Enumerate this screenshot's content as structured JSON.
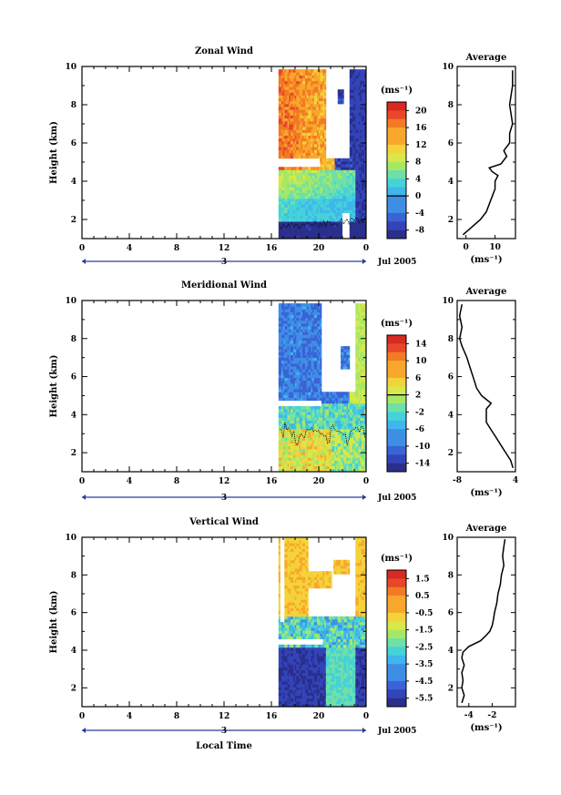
{
  "chart_data": [
    {
      "type": "heatmap",
      "title": "Zonal Wind",
      "ylabel": "Height (km)",
      "xlabel": "",
      "x_ticks": [
        "0",
        "4",
        "8",
        "12",
        "16",
        "20",
        "0"
      ],
      "y_ticks": [
        "2",
        "4",
        "6",
        "8",
        "10"
      ],
      "xlim": [
        0,
        24
      ],
      "ylim": [
        1,
        10
      ],
      "date_row": {
        "day_label": "3",
        "month_label": "Jul 2005"
      },
      "colorbar": {
        "unit": "(ms⁻¹)",
        "ticks": [
          "20",
          "16",
          "12",
          "8",
          "4",
          "0",
          "-4",
          "-8"
        ],
        "range": [
          -10,
          22
        ],
        "zero_line": 0
      },
      "profile": {
        "title": "Average",
        "x_ticks": [
          "0",
          "10"
        ],
        "xlim": [
          -3,
          17
        ],
        "unit": "(ms⁻¹)",
        "y_ticks": [
          "2",
          "4",
          "6",
          "8",
          "10"
        ],
        "heights": [
          1.2,
          1.6,
          2.0,
          2.4,
          2.8,
          3.2,
          3.6,
          4.0,
          4.3,
          4.5,
          4.7,
          4.9,
          5.1,
          5.3,
          5.6,
          6.0,
          6.5,
          7.0,
          8.0,
          9.0,
          9.8
        ],
        "values": [
          -1,
          2,
          5,
          7,
          8,
          9,
          10,
          10,
          11,
          9,
          8,
          12,
          13,
          14,
          13,
          15,
          15,
          16,
          15,
          16,
          16
        ]
      }
    },
    {
      "type": "heatmap",
      "title": "Meridional Wind",
      "ylabel": "Height (km)",
      "xlabel": "",
      "x_ticks": [
        "0",
        "4",
        "8",
        "12",
        "16",
        "20",
        "0"
      ],
      "y_ticks": [
        "2",
        "4",
        "6",
        "8",
        "10"
      ],
      "xlim": [
        0,
        24
      ],
      "ylim": [
        1,
        10
      ],
      "date_row": {
        "day_label": "3",
        "month_label": "Jul 2005"
      },
      "colorbar": {
        "unit": "(ms⁻¹)",
        "ticks": [
          "14",
          "10",
          "6",
          "2",
          "-2",
          "-6",
          "-10",
          "-14"
        ],
        "range": [
          -16,
          16
        ],
        "zero_line": 2
      },
      "profile": {
        "title": "Average",
        "x_ticks": [
          "-8",
          "4"
        ],
        "xlim": [
          -8,
          4
        ],
        "unit": "(ms⁻¹)",
        "y_ticks": [
          "2",
          "4",
          "6",
          "8",
          "10"
        ],
        "heights": [
          1.2,
          1.6,
          2.0,
          2.4,
          2.8,
          3.2,
          3.6,
          4.0,
          4.3,
          4.6,
          4.8,
          5.0,
          5.4,
          5.8,
          6.2,
          6.6,
          7.0,
          7.6,
          8.0,
          8.6,
          9.2,
          9.8
        ],
        "values": [
          3.5,
          3,
          2,
          1,
          0,
          -1,
          -2,
          -2,
          -2,
          -1,
          -2,
          -3,
          -4,
          -4.5,
          -5,
          -5.5,
          -6,
          -7,
          -7.5,
          -7,
          -7.5,
          -7
        ]
      }
    },
    {
      "type": "heatmap",
      "title": "Vertical Wind",
      "ylabel": "Height (km)",
      "xlabel": "Local Time",
      "x_ticks": [
        "0",
        "4",
        "8",
        "12",
        "16",
        "20",
        "0"
      ],
      "y_ticks": [
        "2",
        "4",
        "6",
        "8",
        "10"
      ],
      "xlim": [
        0,
        24
      ],
      "ylim": [
        1,
        10
      ],
      "date_row": {
        "day_label": "3",
        "month_label": "Jul 2005"
      },
      "colorbar": {
        "unit": "(ms⁻¹)",
        "ticks": [
          "1.5",
          "0.5",
          "-0.5",
          "-1.5",
          "-2.5",
          "-3.5",
          "-4.5",
          "-5.5"
        ],
        "range": [
          -6,
          2
        ],
        "zero_line": null
      },
      "profile": {
        "title": "Average",
        "x_ticks": [
          "-4",
          "-2"
        ],
        "xlim": [
          -5,
          0
        ],
        "unit": "(ms⁻¹)",
        "y_ticks": [
          "2",
          "4",
          "6",
          "8",
          "10"
        ],
        "heights": [
          1.2,
          1.6,
          2.0,
          2.4,
          2.8,
          3.2,
          3.6,
          3.9,
          4.2,
          4.5,
          4.8,
          5.0,
          5.3,
          5.6,
          6.0,
          6.5,
          7.0,
          7.5,
          8.0,
          8.5,
          9.0,
          9.5,
          9.9
        ],
        "values": [
          -4.6,
          -4.4,
          -4.6,
          -4.5,
          -4.6,
          -4.4,
          -4.6,
          -4.5,
          -4,
          -3,
          -2.5,
          -2.2,
          -2,
          -1.9,
          -1.8,
          -1.6,
          -1.5,
          -1.3,
          -1.2,
          -1.0,
          -1.1,
          -1.0,
          -0.9
        ]
      }
    }
  ]
}
